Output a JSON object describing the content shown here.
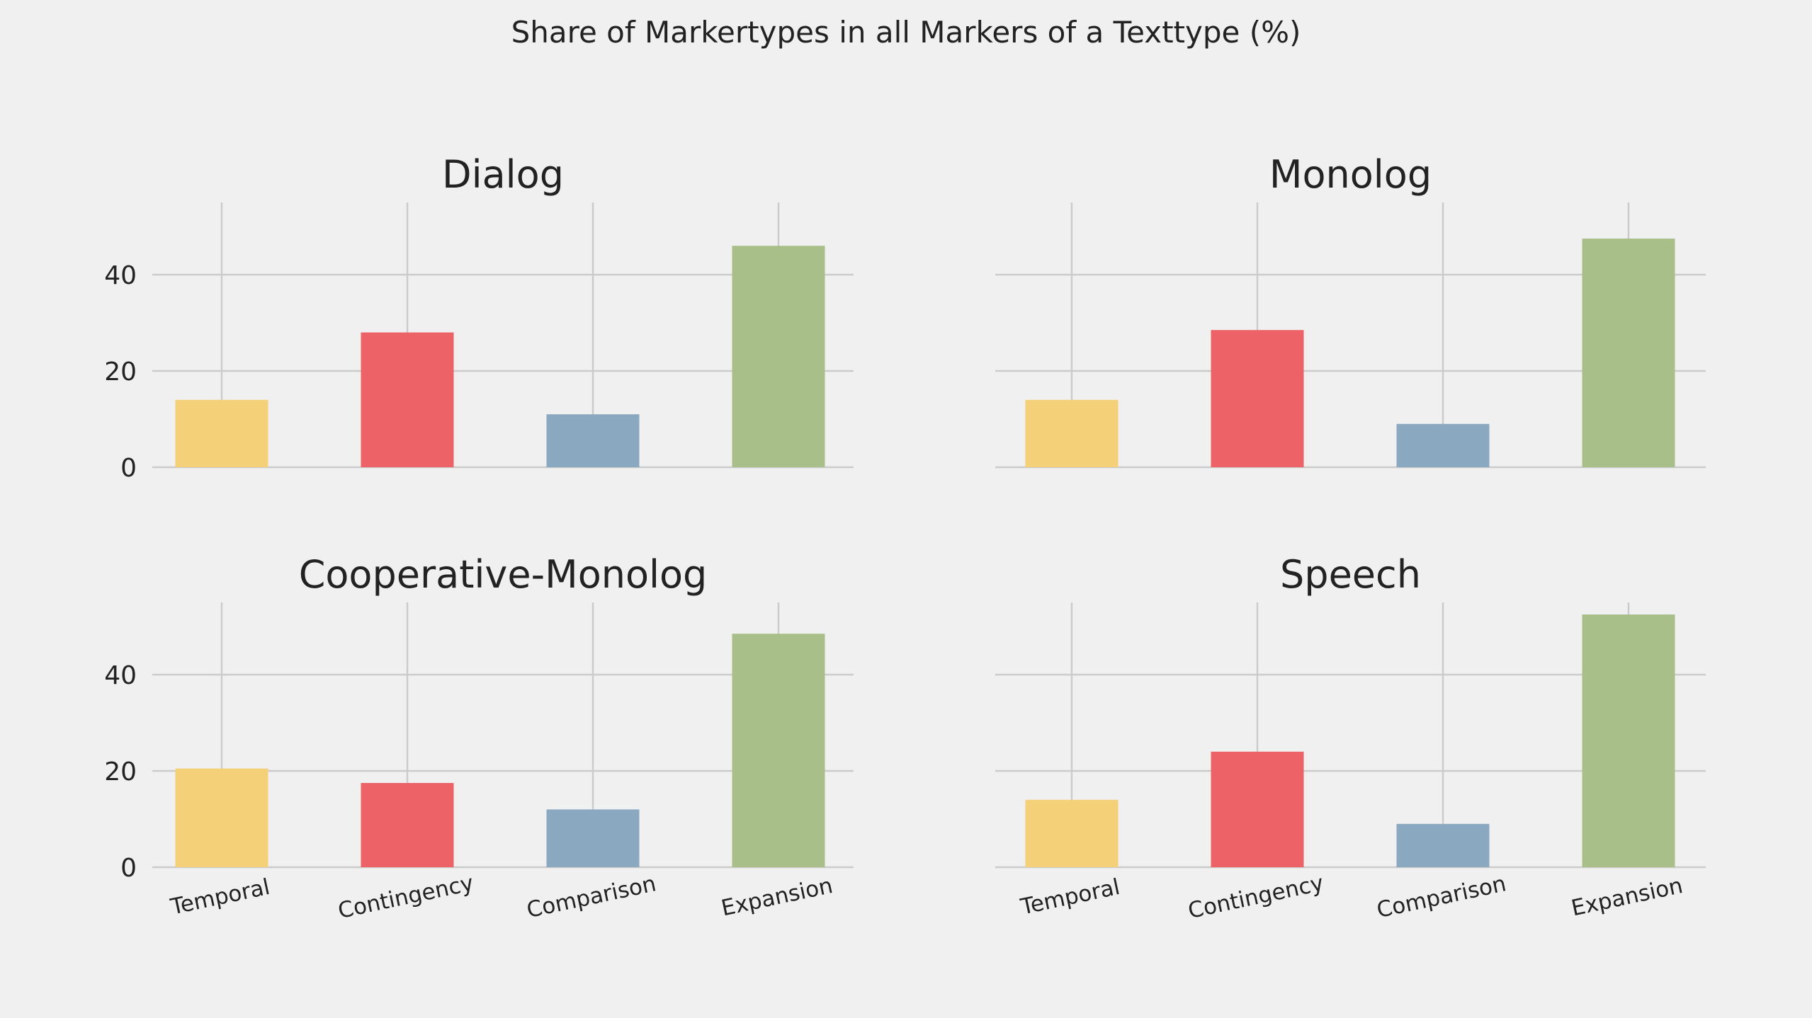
{
  "figure": {
    "suptitle": "Share of Markertypes in all Markers of a Texttype (%)",
    "background": "#f0f0f0",
    "grid_color": "#cbcbcb",
    "text_color": "#222222"
  },
  "chart_data": [
    {
      "type": "bar",
      "title": "Dialog",
      "categories": [
        "Temporal",
        "Contingency",
        "Comparison",
        "Expansion"
      ],
      "values": [
        14,
        28,
        11,
        46
      ],
      "colors": [
        "#f4d078",
        "#ec6266",
        "#8aa8c0",
        "#a8bf8a"
      ],
      "ylim": [
        0,
        55
      ],
      "yticks": [
        "0",
        "20",
        "40"
      ],
      "show_xticklabels": false,
      "show_yticklabels": true,
      "grid": true
    },
    {
      "type": "bar",
      "title": "Monolog",
      "categories": [
        "Temporal",
        "Contingency",
        "Comparison",
        "Expansion"
      ],
      "values": [
        14,
        28.5,
        9,
        47.5
      ],
      "colors": [
        "#f4d078",
        "#ec6266",
        "#8aa8c0",
        "#a8bf8a"
      ],
      "ylim": [
        0,
        55
      ],
      "yticks": [
        "0",
        "20",
        "40"
      ],
      "show_xticklabels": false,
      "show_yticklabels": false,
      "grid": true
    },
    {
      "type": "bar",
      "title": "Cooperative-Monolog",
      "categories": [
        "Temporal",
        "Contingency",
        "Comparison",
        "Expansion"
      ],
      "values": [
        20.5,
        17.5,
        12,
        48.5
      ],
      "colors": [
        "#f4d078",
        "#ec6266",
        "#8aa8c0",
        "#a8bf8a"
      ],
      "ylim": [
        0,
        55
      ],
      "yticks": [
        "0",
        "20",
        "40"
      ],
      "show_xticklabels": true,
      "show_yticklabels": true,
      "grid": true
    },
    {
      "type": "bar",
      "title": "Speech",
      "categories": [
        "Temporal",
        "Contingency",
        "Comparison",
        "Expansion"
      ],
      "values": [
        14,
        24,
        9,
        52.5
      ],
      "colors": [
        "#f4d078",
        "#ec6266",
        "#8aa8c0",
        "#a8bf8a"
      ],
      "ylim": [
        0,
        55
      ],
      "yticks": [
        "0",
        "20",
        "40"
      ],
      "show_xticklabels": true,
      "show_yticklabels": false,
      "grid": true
    }
  ]
}
